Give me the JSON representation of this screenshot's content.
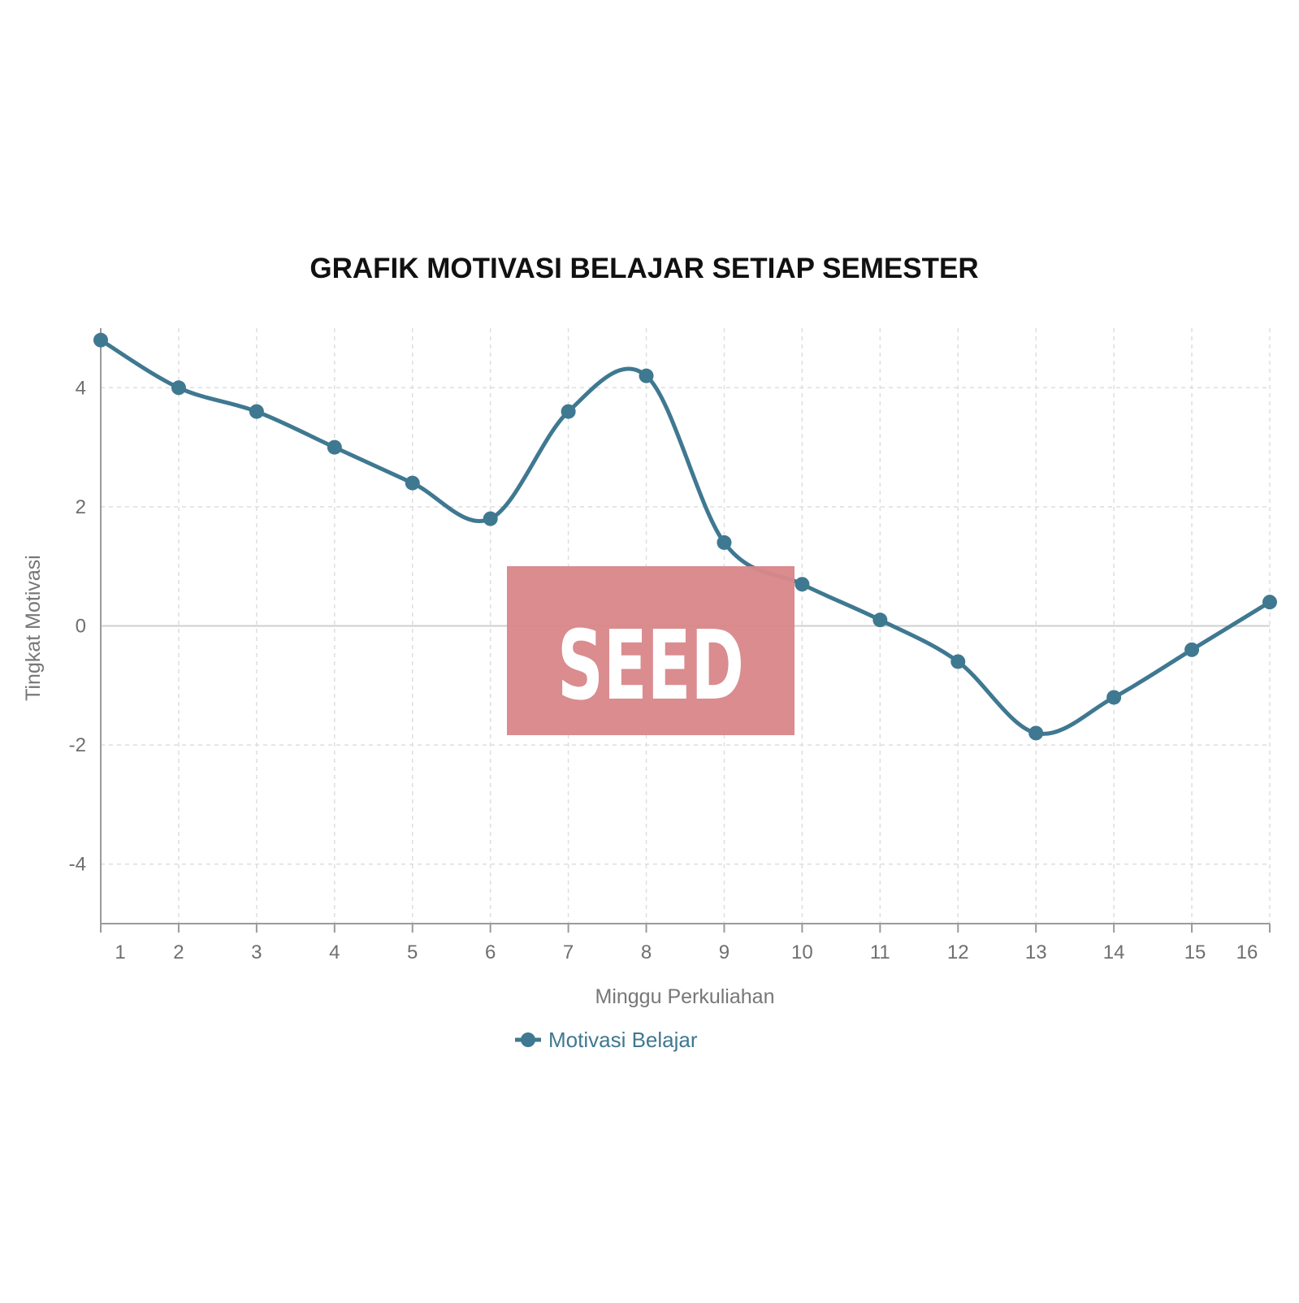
{
  "colors": {
    "series": "#3f7891",
    "grid": "#dedede",
    "axis": "#9a9a9a",
    "watermark": "#d9878a"
  },
  "watermark": {
    "text": "SEED"
  },
  "chart_data": {
    "type": "line",
    "title": "GRAFIK MOTIVASI BELAJAR SETIAP SEMESTER",
    "xlabel": "Minggu Perkuliahan",
    "ylabel": "Tingkat Motivasi",
    "categories": [
      "1",
      "2",
      "3",
      "4",
      "5",
      "6",
      "7",
      "8",
      "9",
      "10",
      "11",
      "12",
      "13",
      "14",
      "15",
      "16"
    ],
    "x": [
      1,
      2,
      3,
      4,
      5,
      6,
      7,
      8,
      9,
      10,
      11,
      12,
      13,
      14,
      15,
      16
    ],
    "series": [
      {
        "name": "Motivasi Belajar",
        "values": [
          4.8,
          4.0,
          3.6,
          3.0,
          2.4,
          1.8,
          3.6,
          4.2,
          1.4,
          0.7,
          0.1,
          -0.6,
          -1.8,
          -1.2,
          -0.4,
          0.4
        ]
      }
    ],
    "xlim": [
      1,
      16
    ],
    "ylim": [
      -5,
      5
    ],
    "yticks": [
      -4,
      -2,
      0,
      2,
      4
    ],
    "grid": true,
    "smooth": true,
    "legend": "bottom-center"
  }
}
